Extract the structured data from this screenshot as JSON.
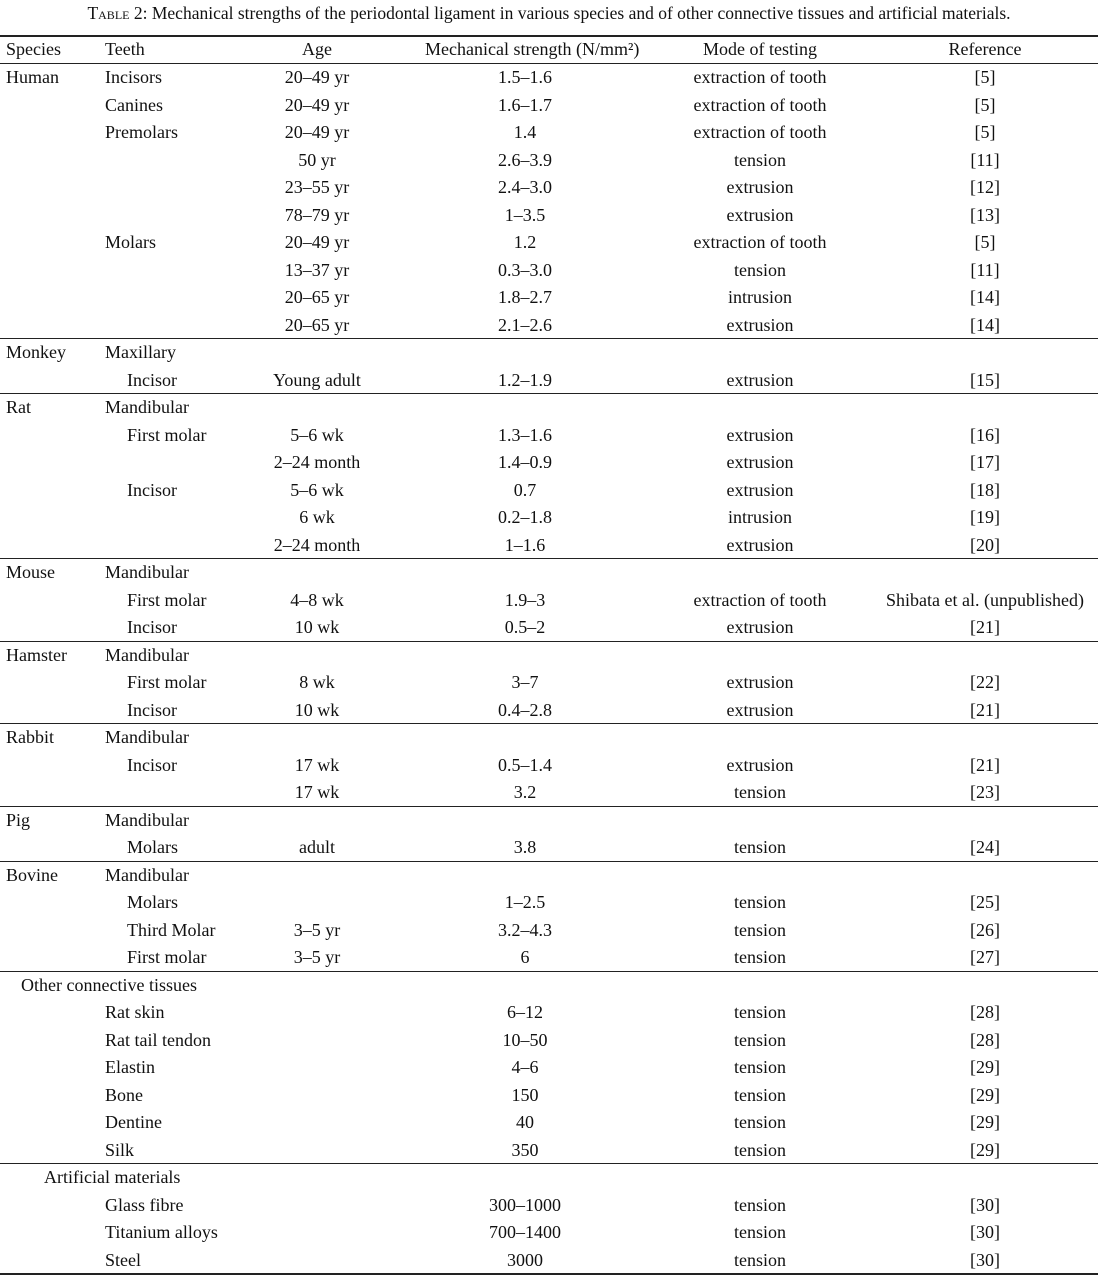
{
  "caption": {
    "label": "Table 2:",
    "text": "Mechanical strengths of the periodontal ligament in various species and of other connective tissues and artificial materials."
  },
  "header": {
    "species": "Species",
    "teeth": "Teeth",
    "age": "Age",
    "strength": "Mechanical strength (N/mm²)",
    "mode": "Mode of testing",
    "reference": "Reference"
  },
  "groups": [
    {
      "rows": [
        {
          "species": "Human",
          "teeth": "Incisors",
          "age": "20–49 yr",
          "strength": "1.5–1.6",
          "mode": "extraction of tooth",
          "ref": "[5]"
        },
        {
          "teeth": "Canines",
          "age": "20–49 yr",
          "strength": "1.6–1.7",
          "mode": "extraction of tooth",
          "ref": "[5]"
        },
        {
          "teeth": "Premolars",
          "age": "20–49 yr",
          "strength": "1.4",
          "mode": "extraction of tooth",
          "ref": "[5]"
        },
        {
          "age": "50 yr",
          "strength": "2.6–3.9",
          "mode": "tension",
          "ref": "[11]"
        },
        {
          "age": "23–55 yr",
          "strength": "2.4–3.0",
          "mode": "extrusion",
          "ref": "[12]"
        },
        {
          "age": "78–79 yr",
          "strength": "1–3.5",
          "mode": "extrusion",
          "ref": "[13]"
        },
        {
          "teeth": "Molars",
          "age": "20–49 yr",
          "strength": "1.2",
          "mode": "extraction of tooth",
          "ref": "[5]"
        },
        {
          "age": "13–37 yr",
          "strength": "0.3–3.0",
          "mode": "tension",
          "ref": "[11]"
        },
        {
          "age": "20–65 yr",
          "strength": "1.8–2.7",
          "mode": "intrusion",
          "ref": "[14]"
        },
        {
          "age": "20–65 yr",
          "strength": "2.1–2.6",
          "mode": "extrusion",
          "ref": "[14]"
        }
      ]
    },
    {
      "rows": [
        {
          "species": "Monkey",
          "teeth": "Maxillary"
        },
        {
          "teeth": "Incisor",
          "sub": true,
          "age": "Young adult",
          "strength": "1.2–1.9",
          "mode": "extrusion",
          "ref": "[15]"
        }
      ]
    },
    {
      "rows": [
        {
          "species": "Rat",
          "teeth": "Mandibular"
        },
        {
          "teeth": "First molar",
          "sub": true,
          "age": "5–6 wk",
          "strength": "1.3–1.6",
          "mode": "extrusion",
          "ref": "[16]"
        },
        {
          "age": "2–24 month",
          "strength": "1.4–0.9",
          "mode": "extrusion",
          "ref": "[17]"
        },
        {
          "teeth": "Incisor",
          "sub": true,
          "age": "5–6 wk",
          "strength": "0.7",
          "mode": "extrusion",
          "ref": "[18]"
        },
        {
          "age": "6 wk",
          "strength": "0.2–1.8",
          "mode": "intrusion",
          "ref": "[19]"
        },
        {
          "age": "2–24 month",
          "strength": "1–1.6",
          "mode": "extrusion",
          "ref": "[20]"
        }
      ]
    },
    {
      "rows": [
        {
          "species": "Mouse",
          "teeth": "Mandibular"
        },
        {
          "teeth": "First molar",
          "sub": true,
          "age": "4–8 wk",
          "strength": "1.9–3",
          "mode": "extraction of tooth",
          "ref": "Shibata et al. (unpublished)"
        },
        {
          "teeth": "Incisor",
          "sub": true,
          "age": "10 wk",
          "strength": "0.5–2",
          "mode": "extrusion",
          "ref": "[21]"
        }
      ]
    },
    {
      "rows": [
        {
          "species": "Hamster",
          "teeth": "Mandibular"
        },
        {
          "teeth": "First molar",
          "sub": true,
          "age": "8 wk",
          "strength": "3–7",
          "mode": "extrusion",
          "ref": "[22]"
        },
        {
          "teeth": "Incisor",
          "sub": true,
          "age": "10 wk",
          "strength": "0.4–2.8",
          "mode": "extrusion",
          "ref": "[21]"
        }
      ]
    },
    {
      "rows": [
        {
          "species": "Rabbit",
          "teeth": "Mandibular"
        },
        {
          "teeth": "Incisor",
          "sub": true,
          "age": "17 wk",
          "strength": "0.5–1.4",
          "mode": "extrusion",
          "ref": "[21]"
        },
        {
          "age": "17 wk",
          "strength": "3.2",
          "mode": "tension",
          "ref": "[23]"
        }
      ]
    },
    {
      "rows": [
        {
          "species": "Pig",
          "teeth": "Mandibular"
        },
        {
          "teeth": "Molars",
          "sub": true,
          "age": "adult",
          "strength": "3.8",
          "mode": "tension",
          "ref": "[24]"
        }
      ]
    },
    {
      "rows": [
        {
          "species": "Bovine",
          "teeth": "Mandibular"
        },
        {
          "teeth": "Molars",
          "sub": true,
          "strength": "1–2.5",
          "mode": "tension",
          "ref": "[25]"
        },
        {
          "teeth": "Third Molar",
          "sub": true,
          "age": "3–5 yr",
          "strength": "3.2–4.3",
          "mode": "tension",
          "ref": "[26]"
        },
        {
          "teeth": "First molar",
          "sub": true,
          "age": "3–5 yr",
          "strength": "6",
          "mode": "tension",
          "ref": "[27]"
        }
      ]
    },
    {
      "section": "Other connective tissues",
      "section_level": 1,
      "rows": [
        {
          "teeth": "Rat skin",
          "strength": "6–12",
          "mode": "tension",
          "ref": "[28]"
        },
        {
          "teeth": "Rat tail tendon",
          "strength": "10–50",
          "mode": "tension",
          "ref": "[28]"
        },
        {
          "teeth": "Elastin",
          "strength": "4–6",
          "mode": "tension",
          "ref": "[29]"
        },
        {
          "teeth": "Bone",
          "strength": "150",
          "mode": "tension",
          "ref": "[29]"
        },
        {
          "teeth": "Dentine",
          "strength": "40",
          "mode": "tension",
          "ref": "[29]"
        },
        {
          "teeth": "Silk",
          "strength": "350",
          "mode": "tension",
          "ref": "[29]"
        }
      ]
    },
    {
      "section": "Artificial materials",
      "section_level": 2,
      "rows": [
        {
          "teeth": "Glass fibre",
          "strength": "300–1000",
          "mode": "tension",
          "ref": "[30]"
        },
        {
          "teeth": "Titanium alloys",
          "strength": "700–1400",
          "mode": "tension",
          "ref": "[30]"
        },
        {
          "teeth": "Steel",
          "strength": "3000",
          "mode": "tension",
          "ref": "[30]"
        }
      ]
    }
  ]
}
